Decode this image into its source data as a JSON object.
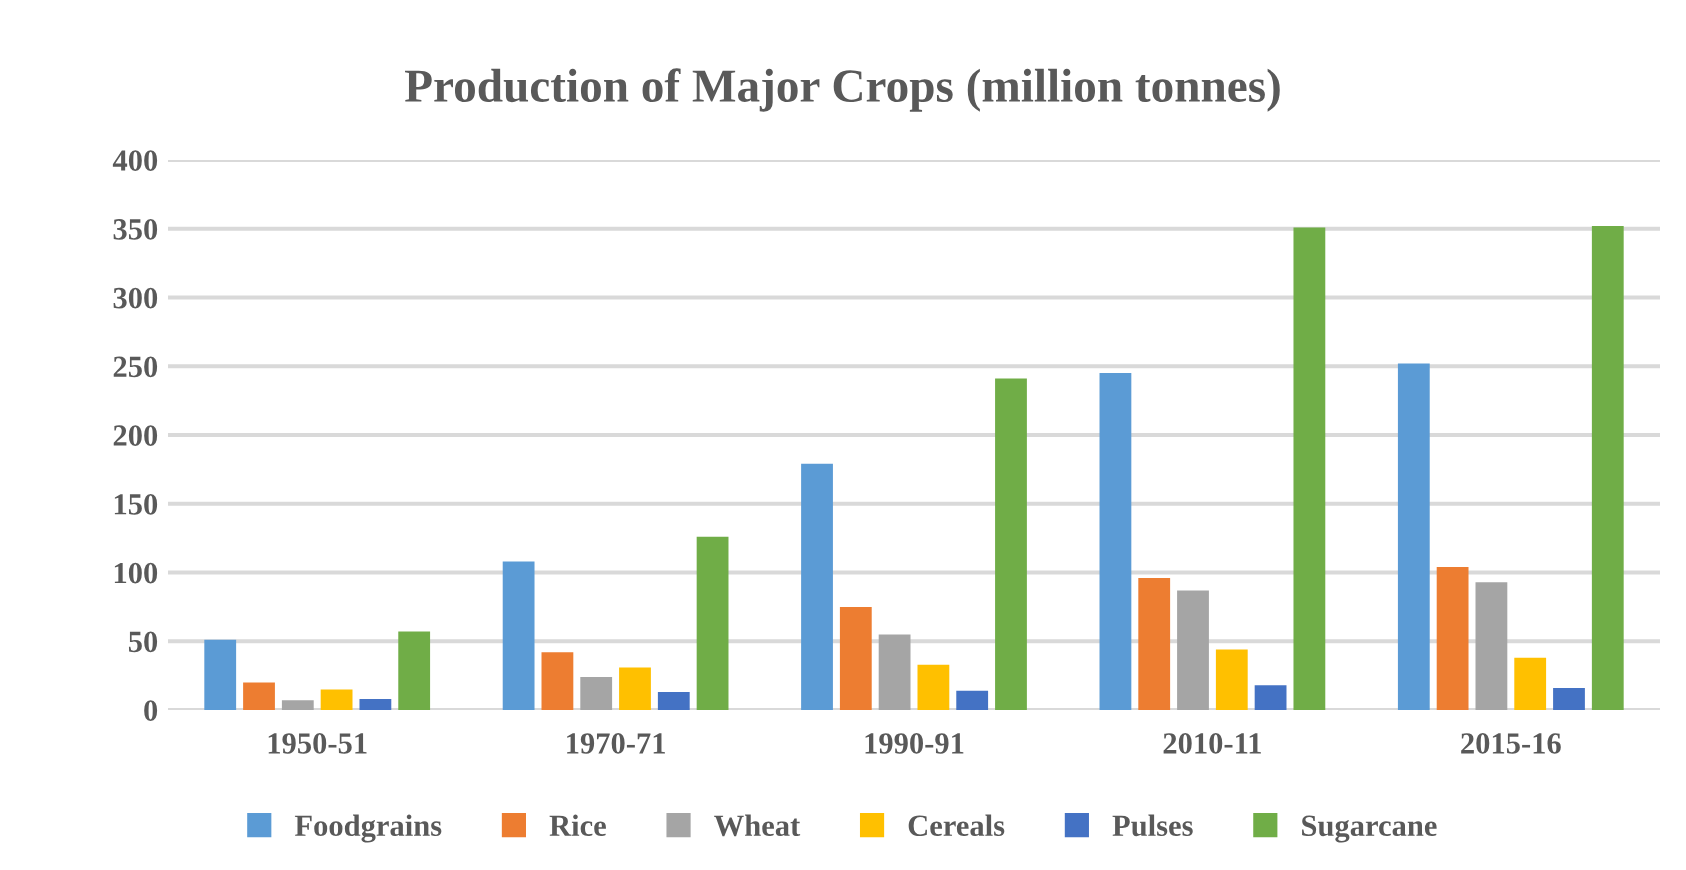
{
  "chart_data": {
    "type": "bar",
    "title": "Production of Major Crops (million tonnes)",
    "categories": [
      "1950-51",
      "1970-71",
      "1990-91",
      "2010-11",
      "2015-16"
    ],
    "series": [
      {
        "name": "Foodgrains",
        "color": "#5b9bd5",
        "values": [
          51,
          108,
          179,
          245,
          252
        ]
      },
      {
        "name": "Rice",
        "color": "#ed7d31",
        "values": [
          20,
          42,
          75,
          96,
          104
        ]
      },
      {
        "name": "Wheat",
        "color": "#a5a5a5",
        "values": [
          7,
          24,
          55,
          87,
          93
        ]
      },
      {
        "name": "Cereals",
        "color": "#ffc000",
        "values": [
          15,
          31,
          33,
          44,
          38
        ]
      },
      {
        "name": "Pulses",
        "color": "#4472c4",
        "values": [
          8,
          13,
          14,
          18,
          16
        ]
      },
      {
        "name": "Sugarcane",
        "color": "#70ad47",
        "values": [
          57,
          126,
          241,
          351,
          352
        ]
      }
    ],
    "ylim": [
      0,
      400
    ],
    "yticks": [
      0,
      50,
      100,
      150,
      200,
      250,
      300,
      350,
      400
    ],
    "grid": "y",
    "legend": "bottom"
  }
}
